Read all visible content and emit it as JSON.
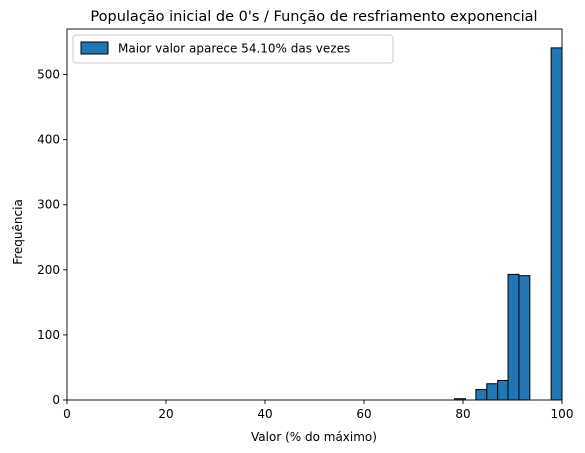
{
  "chart_data": {
    "type": "bar",
    "title": "População inicial de 0's / Função de resfriamento exponencial",
    "xlabel": "Valor (% do máximo)",
    "ylabel": "Frequência",
    "xlim": [
      0,
      100
    ],
    "ylim": [
      0,
      570
    ],
    "xticks": [
      0,
      20,
      40,
      60,
      80,
      100
    ],
    "yticks": [
      0,
      100,
      200,
      300,
      400,
      500
    ],
    "grid": false,
    "legend": {
      "placement": "top-left",
      "entries": [
        "Maior valor aparece 54.10% das vezes"
      ]
    },
    "series": [
      {
        "name": "Maior valor aparece 54.10% das vezes",
        "color": "#1f77b4",
        "edgecolor": "#000000",
        "bins": [
          {
            "x0": 78.3,
            "x1": 80.5,
            "value": 2
          },
          {
            "x0": 82.6,
            "x1": 84.8,
            "value": 16
          },
          {
            "x0": 84.8,
            "x1": 87.0,
            "value": 25
          },
          {
            "x0": 87.0,
            "x1": 89.1,
            "value": 30
          },
          {
            "x0": 89.1,
            "x1": 91.3,
            "value": 193
          },
          {
            "x0": 91.3,
            "x1": 93.5,
            "value": 191
          },
          {
            "x0": 97.8,
            "x1": 100.0,
            "value": 541
          }
        ]
      }
    ]
  }
}
